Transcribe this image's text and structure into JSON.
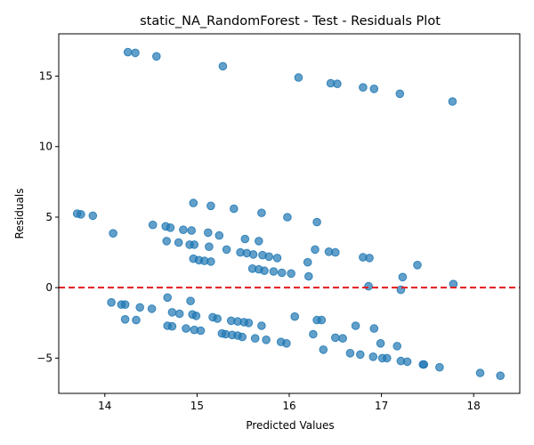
{
  "chart_data": {
    "type": "scatter",
    "title": "static_NA_RandomForest - Test - Residuals Plot",
    "xlabel": "Predicted Values",
    "ylabel": "Residuals",
    "xlim": [
      13.5,
      18.5
    ],
    "ylim": [
      -7.5,
      18.0
    ],
    "xticks": [
      14,
      15,
      16,
      17,
      18
    ],
    "yticks": [
      -5,
      0,
      5,
      10,
      15
    ],
    "xtick_labels": [
      "14",
      "15",
      "16",
      "17",
      "18"
    ],
    "ytick_labels": [
      "−5",
      "0",
      "5",
      "10",
      "15"
    ],
    "grid": false,
    "reference_line": {
      "y": 0,
      "color": "#e31a1c",
      "style": "dashed"
    },
    "point_color": "#1f77b4",
    "points": [
      [
        14.25,
        16.7
      ],
      [
        14.33,
        16.65
      ],
      [
        14.56,
        16.4
      ],
      [
        15.28,
        15.7
      ],
      [
        16.1,
        14.9
      ],
      [
        16.45,
        14.5
      ],
      [
        16.52,
        14.45
      ],
      [
        16.8,
        14.2
      ],
      [
        16.92,
        14.1
      ],
      [
        17.2,
        13.75
      ],
      [
        17.77,
        13.2
      ],
      [
        13.7,
        5.25
      ],
      [
        13.74,
        5.2
      ],
      [
        13.87,
        5.1
      ],
      [
        14.09,
        3.85
      ],
      [
        14.52,
        4.45
      ],
      [
        14.66,
        4.35
      ],
      [
        14.71,
        4.25
      ],
      [
        14.85,
        4.1
      ],
      [
        14.96,
        6.0
      ],
      [
        14.94,
        4.05
      ],
      [
        15.15,
        5.8
      ],
      [
        15.4,
        5.6
      ],
      [
        15.7,
        5.3
      ],
      [
        15.98,
        5.0
      ],
      [
        16.3,
        4.65
      ],
      [
        14.67,
        3.3
      ],
      [
        14.8,
        3.2
      ],
      [
        14.92,
        3.05
      ],
      [
        14.97,
        3.05
      ],
      [
        15.12,
        3.9
      ],
      [
        15.24,
        3.7
      ],
      [
        15.13,
        2.9
      ],
      [
        15.32,
        2.7
      ],
      [
        15.52,
        3.45
      ],
      [
        15.67,
        3.3
      ],
      [
        15.47,
        2.5
      ],
      [
        15.54,
        2.45
      ],
      [
        15.61,
        2.35
      ],
      [
        15.71,
        2.3
      ],
      [
        15.78,
        2.2
      ],
      [
        15.87,
        2.1
      ],
      [
        16.28,
        2.7
      ],
      [
        16.43,
        2.55
      ],
      [
        16.5,
        2.5
      ],
      [
        16.8,
        2.15
      ],
      [
        16.87,
        2.1
      ],
      [
        17.39,
        1.6
      ],
      [
        14.96,
        2.05
      ],
      [
        15.02,
        1.95
      ],
      [
        15.08,
        1.9
      ],
      [
        15.15,
        1.85
      ],
      [
        15.6,
        1.35
      ],
      [
        15.67,
        1.3
      ],
      [
        15.73,
        1.2
      ],
      [
        15.83,
        1.15
      ],
      [
        15.92,
        1.05
      ],
      [
        16.02,
        1.0
      ],
      [
        16.21,
        0.8
      ],
      [
        16.2,
        1.8
      ],
      [
        17.23,
        0.75
      ],
      [
        16.86,
        0.1
      ],
      [
        17.21,
        -0.15
      ],
      [
        17.78,
        0.25
      ],
      [
        14.07,
        -1.05
      ],
      [
        14.18,
        -1.2
      ],
      [
        14.22,
        -1.2
      ],
      [
        14.38,
        -1.4
      ],
      [
        14.51,
        -1.5
      ],
      [
        14.68,
        -0.7
      ],
      [
        14.93,
        -0.95
      ],
      [
        14.73,
        -1.75
      ],
      [
        14.81,
        -1.85
      ],
      [
        14.95,
        -1.9
      ],
      [
        14.99,
        -2.0
      ],
      [
        14.22,
        -2.25
      ],
      [
        14.34,
        -2.3
      ],
      [
        15.17,
        -2.1
      ],
      [
        15.22,
        -2.2
      ],
      [
        15.37,
        -2.35
      ],
      [
        15.44,
        -2.4
      ],
      [
        15.51,
        -2.45
      ],
      [
        15.56,
        -2.5
      ],
      [
        16.06,
        -2.05
      ],
      [
        16.3,
        -2.3
      ],
      [
        16.35,
        -2.3
      ],
      [
        16.72,
        -2.7
      ],
      [
        16.92,
        -2.9
      ],
      [
        14.68,
        -2.7
      ],
      [
        14.73,
        -2.75
      ],
      [
        14.88,
        -2.9
      ],
      [
        14.97,
        -3.0
      ],
      [
        15.04,
        -3.05
      ],
      [
        15.27,
        -3.25
      ],
      [
        15.31,
        -3.3
      ],
      [
        15.38,
        -3.35
      ],
      [
        15.44,
        -3.4
      ],
      [
        15.49,
        -3.5
      ],
      [
        15.63,
        -3.6
      ],
      [
        15.7,
        -2.7
      ],
      [
        15.75,
        -3.7
      ],
      [
        15.91,
        -3.85
      ],
      [
        15.97,
        -3.95
      ],
      [
        16.26,
        -3.3
      ],
      [
        16.5,
        -3.55
      ],
      [
        16.58,
        -3.6
      ],
      [
        16.37,
        -4.4
      ],
      [
        16.66,
        -4.65
      ],
      [
        16.77,
        -4.75
      ],
      [
        16.91,
        -4.9
      ],
      [
        16.99,
        -3.95
      ],
      [
        17.01,
        -5.0
      ],
      [
        17.06,
        -5.0
      ],
      [
        17.17,
        -4.15
      ],
      [
        17.21,
        -5.2
      ],
      [
        17.28,
        -5.25
      ],
      [
        17.45,
        -5.45
      ],
      [
        17.46,
        -5.45
      ],
      [
        17.63,
        -5.65
      ],
      [
        18.07,
        -6.05
      ],
      [
        18.29,
        -6.25
      ]
    ]
  }
}
